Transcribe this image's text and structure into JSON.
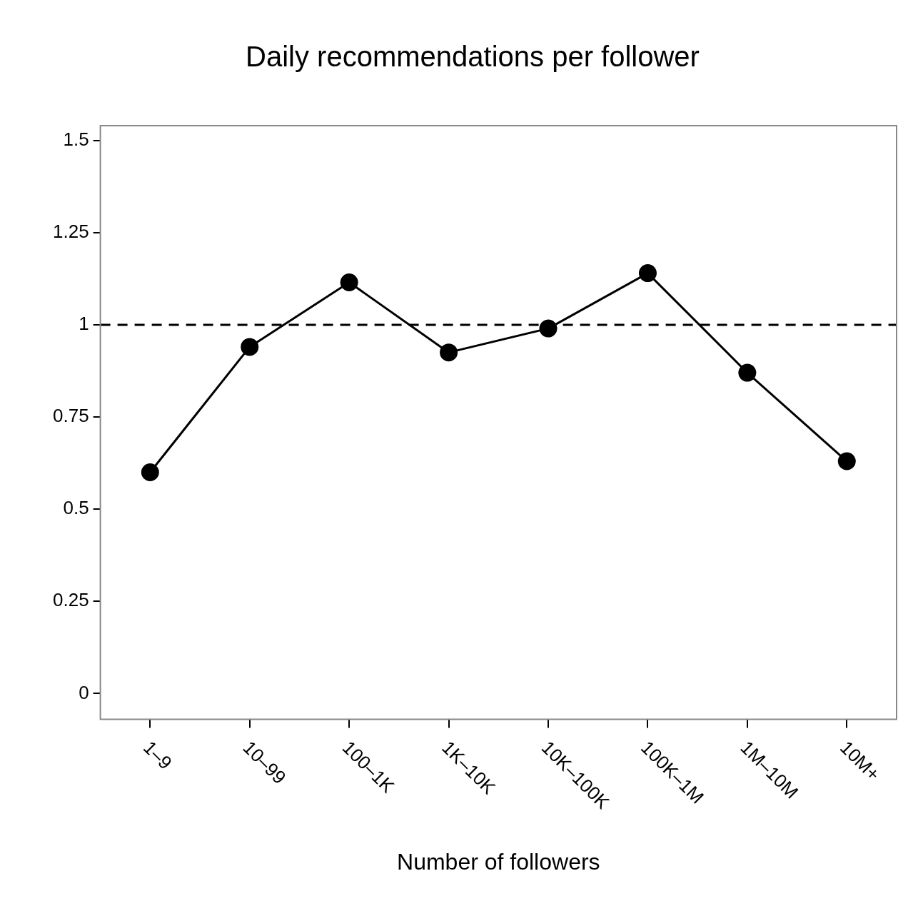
{
  "chart_data": {
    "type": "line",
    "title": "Daily recommendations per follower",
    "xlabel": "Number of followers",
    "categories": [
      "1–9",
      "10–99",
      "100–1K",
      "1K–10K",
      "10K–100K",
      "100K–1M",
      "1M–10M",
      "10M+"
    ],
    "series": [
      {
        "color": "#000000",
        "values": [
          0.6,
          0.94,
          1.115,
          0.925,
          0.99,
          1.14,
          0.87,
          0.63
        ]
      }
    ],
    "ylim": [
      -0.07,
      1.54
    ],
    "yticks": [
      0,
      0.25,
      0.5,
      0.75,
      1,
      1.25,
      1.5
    ],
    "ref_lines": [
      {
        "axis": "y",
        "value": 1,
        "color": "#000000",
        "line_style": "dashed"
      }
    ],
    "grid": false,
    "legend": false,
    "marker": "circle",
    "line_style": "solid"
  }
}
